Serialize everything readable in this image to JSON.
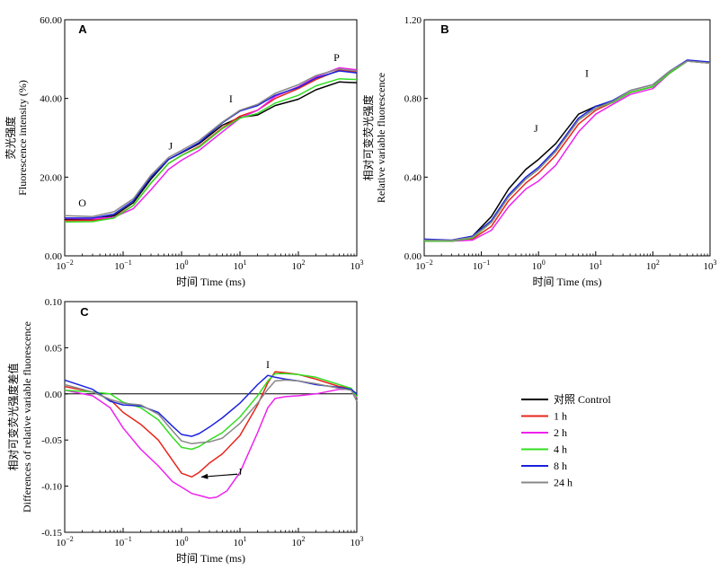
{
  "chart_data": [
    {
      "id": "A",
      "type": "line",
      "panel_label": "A",
      "xscale": "log",
      "xlim": [
        0.01,
        1000
      ],
      "ylim": [
        0,
        60
      ],
      "xlabel": "时间 Time (ms)",
      "ylabel_cn": "荧光强度",
      "ylabel_en": "Fluorescence intensity (%)",
      "yticks": [
        "0.00",
        "20.00",
        "40.00",
        "60.00"
      ],
      "ytick_values": [
        0,
        20,
        40,
        60
      ],
      "xticks": [
        {
          "base": "10",
          "exp": "−2",
          "value": 0.01
        },
        {
          "base": "10",
          "exp": "−1",
          "value": 0.1
        },
        {
          "base": "10",
          "exp": "0",
          "value": 1
        },
        {
          "base": "10",
          "exp": "1",
          "value": 10
        },
        {
          "base": "10",
          "exp": "2",
          "value": 100
        },
        {
          "base": "10",
          "exp": "3",
          "value": 1000
        }
      ],
      "annotations": [
        {
          "text": "O",
          "x": 0.02,
          "y": 12.5
        },
        {
          "text": "J",
          "x": 0.65,
          "y": 27
        },
        {
          "text": "I",
          "x": 7,
          "y": 39
        },
        {
          "text": "P",
          "x": 450,
          "y": 49.5
        }
      ],
      "series": [
        {
          "key": "ctrl",
          "x": [
            0.01,
            0.03,
            0.07,
            0.15,
            0.3,
            0.6,
            1,
            2,
            5,
            10,
            20,
            40,
            100,
            200,
            500,
            1000
          ],
          "y": [
            9.2,
            9.3,
            10.2,
            13.5,
            19.5,
            24.5,
            26.2,
            28.5,
            33.2,
            35.2,
            35.8,
            38.2,
            39.8,
            42.2,
            44.2,
            44.0
          ]
        },
        {
          "key": "h1",
          "x": [
            0.01,
            0.03,
            0.07,
            0.15,
            0.3,
            0.6,
            1,
            2,
            5,
            10,
            20,
            40,
            100,
            200,
            500,
            1000
          ],
          "y": [
            9.0,
            9.0,
            9.8,
            12.8,
            18.5,
            23.5,
            25.5,
            27.8,
            32.5,
            35.5,
            37.0,
            40.0,
            42.5,
            44.8,
            47.2,
            46.8
          ]
        },
        {
          "key": "h2",
          "x": [
            0.01,
            0.03,
            0.07,
            0.15,
            0.3,
            0.6,
            1,
            2,
            5,
            10,
            20,
            40,
            100,
            200,
            500,
            1000
          ],
          "y": [
            9.5,
            9.4,
            9.8,
            12.0,
            16.8,
            22.0,
            24.3,
            26.8,
            31.5,
            35.0,
            37.0,
            40.5,
            43.0,
            45.5,
            47.8,
            47.3
          ]
        },
        {
          "key": "h4",
          "x": [
            0.01,
            0.03,
            0.07,
            0.15,
            0.3,
            0.6,
            1,
            2,
            5,
            10,
            20,
            40,
            100,
            200,
            500,
            1000
          ],
          "y": [
            8.6,
            8.7,
            9.6,
            12.8,
            18.5,
            23.5,
            25.5,
            27.6,
            32.3,
            35.0,
            36.2,
            38.8,
            40.8,
            43.2,
            45.0,
            44.8
          ]
        },
        {
          "key": "h8",
          "x": [
            0.01,
            0.03,
            0.07,
            0.15,
            0.3,
            0.6,
            1,
            2,
            5,
            10,
            20,
            40,
            100,
            200,
            500,
            1000
          ],
          "y": [
            9.6,
            9.6,
            10.6,
            14.0,
            20.0,
            24.5,
            26.3,
            28.8,
            33.8,
            36.8,
            38.2,
            40.8,
            42.8,
            45.2,
            47.0,
            46.5
          ]
        },
        {
          "key": "h24",
          "x": [
            0.01,
            0.03,
            0.07,
            0.15,
            0.3,
            0.6,
            1,
            2,
            5,
            10,
            20,
            40,
            100,
            200,
            500,
            1000
          ],
          "y": [
            10.2,
            10.0,
            11.2,
            14.5,
            20.5,
            25.0,
            26.8,
            29.3,
            34.0,
            37.0,
            38.5,
            41.3,
            43.5,
            45.8,
            47.5,
            47.0
          ]
        }
      ]
    },
    {
      "id": "B",
      "type": "line",
      "panel_label": "B",
      "xscale": "log",
      "xlim": [
        0.01,
        1000
      ],
      "ylim": [
        0,
        1.2
      ],
      "xlabel": "时间 Time (ms)",
      "ylabel_cn": "相对可变荧光强度",
      "ylabel_en": "Relative variable fluorescence",
      "yticks": [
        "0.00",
        "0.40",
        "0.80",
        "1.20"
      ],
      "ytick_values": [
        0,
        0.4,
        0.8,
        1.2
      ],
      "xticks": [
        {
          "base": "10",
          "exp": "−2",
          "value": 0.01
        },
        {
          "base": "10",
          "exp": "−1",
          "value": 0.1
        },
        {
          "base": "10",
          "exp": "0",
          "value": 1
        },
        {
          "base": "10",
          "exp": "1",
          "value": 10
        },
        {
          "base": "10",
          "exp": "2",
          "value": 100
        },
        {
          "base": "10",
          "exp": "3",
          "value": 1000
        }
      ],
      "annotations": [
        {
          "text": "J",
          "x": 0.9,
          "y": 0.63
        },
        {
          "text": "I",
          "x": 7,
          "y": 0.91
        }
      ],
      "series": [
        {
          "key": "ctrl",
          "x": [
            0.01,
            0.03,
            0.07,
            0.15,
            0.3,
            0.6,
            1,
            2,
            5,
            10,
            20,
            40,
            100,
            200,
            400,
            1000
          ],
          "y": [
            0.075,
            0.075,
            0.1,
            0.2,
            0.34,
            0.44,
            0.49,
            0.57,
            0.72,
            0.76,
            0.78,
            0.83,
            0.86,
            0.93,
            0.99,
            0.98
          ]
        },
        {
          "key": "h1",
          "x": [
            0.01,
            0.03,
            0.07,
            0.15,
            0.3,
            0.6,
            1,
            2,
            5,
            10,
            20,
            40,
            100,
            200,
            400,
            1000
          ],
          "y": [
            0.075,
            0.075,
            0.085,
            0.15,
            0.28,
            0.37,
            0.42,
            0.51,
            0.67,
            0.74,
            0.78,
            0.83,
            0.86,
            0.93,
            0.99,
            0.98
          ]
        },
        {
          "key": "h2",
          "x": [
            0.01,
            0.03,
            0.07,
            0.15,
            0.3,
            0.6,
            1,
            2,
            5,
            10,
            20,
            40,
            100,
            200,
            400,
            1000
          ],
          "y": [
            0.075,
            0.075,
            0.08,
            0.13,
            0.25,
            0.34,
            0.38,
            0.46,
            0.63,
            0.72,
            0.77,
            0.82,
            0.85,
            0.93,
            0.99,
            0.98
          ]
        },
        {
          "key": "h4",
          "x": [
            0.01,
            0.03,
            0.07,
            0.15,
            0.3,
            0.6,
            1,
            2,
            5,
            10,
            20,
            40,
            100,
            200,
            400,
            1000
          ],
          "y": [
            0.075,
            0.075,
            0.09,
            0.17,
            0.3,
            0.39,
            0.44,
            0.53,
            0.69,
            0.75,
            0.78,
            0.83,
            0.86,
            0.93,
            0.99,
            0.98
          ]
        },
        {
          "key": "h8",
          "x": [
            0.01,
            0.03,
            0.07,
            0.15,
            0.3,
            0.6,
            1,
            2,
            5,
            10,
            20,
            40,
            100,
            200,
            400,
            1000
          ],
          "y": [
            0.085,
            0.08,
            0.1,
            0.18,
            0.31,
            0.4,
            0.45,
            0.54,
            0.7,
            0.76,
            0.79,
            0.84,
            0.87,
            0.94,
            0.995,
            0.985
          ]
        },
        {
          "key": "h24",
          "x": [
            0.01,
            0.03,
            0.07,
            0.15,
            0.3,
            0.6,
            1,
            2,
            5,
            10,
            20,
            40,
            100,
            200,
            400,
            1000
          ],
          "y": [
            0.08,
            0.078,
            0.095,
            0.17,
            0.3,
            0.39,
            0.44,
            0.53,
            0.69,
            0.75,
            0.785,
            0.84,
            0.87,
            0.94,
            0.99,
            0.98
          ]
        }
      ]
    },
    {
      "id": "C",
      "type": "line",
      "panel_label": "C",
      "xscale": "log",
      "xlim": [
        0.01,
        1000
      ],
      "ylim": [
        -0.15,
        0.1
      ],
      "zero_line": true,
      "xlabel": "时间 Time (ms)",
      "ylabel_cn": "相对可变荧光强度差值",
      "ylabel_en": "Differences of relative variable fluorescence",
      "yticks": [
        "0.10",
        "0.05",
        "0.00",
        "-0.05",
        "-0.10",
        "-0.15"
      ],
      "ytick_values": [
        0.1,
        0.05,
        0,
        -0.05,
        -0.1,
        -0.15
      ],
      "xticks": [
        {
          "base": "10",
          "exp": "−2",
          "value": 0.01
        },
        {
          "base": "10",
          "exp": "−1",
          "value": 0.1
        },
        {
          "base": "10",
          "exp": "0",
          "value": 1
        },
        {
          "base": "10",
          "exp": "1",
          "value": 10
        },
        {
          "base": "10",
          "exp": "2",
          "value": 100
        },
        {
          "base": "10",
          "exp": "3",
          "value": 1000
        }
      ],
      "annotations": [
        {
          "text": "I",
          "x": 30,
          "y": 0.028
        },
        {
          "text": "J",
          "x": 10,
          "y": -0.088
        }
      ],
      "arrow": {
        "from": [
          9,
          -0.087
        ],
        "to": [
          2.2,
          -0.09
        ]
      },
      "series": [
        {
          "key": "h1",
          "x": [
            0.01,
            0.03,
            0.06,
            0.1,
            0.2,
            0.4,
            0.7,
            1,
            1.5,
            2,
            3,
            5,
            10,
            20,
            30,
            40,
            60,
            100,
            200,
            500,
            800,
            1000
          ],
          "y": [
            0.008,
            0.002,
            -0.006,
            -0.02,
            -0.033,
            -0.05,
            -0.072,
            -0.086,
            -0.09,
            -0.085,
            -0.075,
            -0.065,
            -0.045,
            -0.012,
            0.012,
            0.024,
            0.023,
            0.021,
            0.016,
            0.008,
            0.006,
            -0.004
          ]
        },
        {
          "key": "h2",
          "x": [
            0.01,
            0.03,
            0.06,
            0.1,
            0.2,
            0.4,
            0.7,
            1,
            1.5,
            2,
            3,
            4,
            6,
            10,
            20,
            30,
            40,
            60,
            100,
            200,
            500,
            800,
            1000
          ],
          "y": [
            0.004,
            -0.002,
            -0.015,
            -0.037,
            -0.06,
            -0.078,
            -0.095,
            -0.101,
            -0.108,
            -0.11,
            -0.113,
            -0.112,
            -0.105,
            -0.085,
            -0.042,
            -0.015,
            -0.005,
            -0.003,
            -0.002,
            0.0,
            0.005,
            0.005,
            -0.004
          ]
        },
        {
          "key": "h4",
          "x": [
            0.01,
            0.03,
            0.06,
            0.1,
            0.2,
            0.4,
            0.7,
            1,
            1.5,
            2,
            3,
            5,
            10,
            20,
            30,
            40,
            60,
            100,
            200,
            500,
            800,
            1000
          ],
          "y": [
            0.004,
            0.002,
            0.0,
            -0.009,
            -0.015,
            -0.028,
            -0.047,
            -0.058,
            -0.06,
            -0.057,
            -0.05,
            -0.042,
            -0.025,
            -0.002,
            0.014,
            0.022,
            0.022,
            0.021,
            0.018,
            0.01,
            0.006,
            -0.003
          ]
        },
        {
          "key": "h8",
          "x": [
            0.01,
            0.03,
            0.06,
            0.1,
            0.2,
            0.4,
            0.7,
            1,
            1.5,
            2,
            3,
            5,
            10,
            20,
            30,
            40,
            60,
            100,
            200,
            500,
            800,
            1000
          ],
          "y": [
            0.015,
            0.005,
            -0.008,
            -0.012,
            -0.013,
            -0.02,
            -0.035,
            -0.044,
            -0.046,
            -0.043,
            -0.036,
            -0.026,
            -0.01,
            0.01,
            0.02,
            0.018,
            0.016,
            0.014,
            0.01,
            0.007,
            0.005,
            0.0
          ]
        },
        {
          "key": "h24",
          "x": [
            0.01,
            0.03,
            0.06,
            0.1,
            0.2,
            0.4,
            0.7,
            1,
            1.5,
            2,
            3,
            5,
            10,
            20,
            30,
            40,
            60,
            100,
            200,
            500,
            800,
            1000
          ],
          "y": [
            0.01,
            0.002,
            -0.006,
            -0.01,
            -0.012,
            -0.022,
            -0.04,
            -0.051,
            -0.054,
            -0.053,
            -0.052,
            -0.048,
            -0.032,
            -0.01,
            0.005,
            0.014,
            0.015,
            0.014,
            0.011,
            0.006,
            0.004,
            -0.008
          ]
        }
      ]
    }
  ],
  "legend": {
    "placement": "right of panel C",
    "items": [
      {
        "key": "ctrl",
        "label": "对照 Control",
        "color": "#000000"
      },
      {
        "key": "h1",
        "label": "1 h",
        "color": "#e8251b"
      },
      {
        "key": "h2",
        "label": "2 h",
        "color": "#ee22ee"
      },
      {
        "key": "h4",
        "label": "4 h",
        "color": "#33dd22"
      },
      {
        "key": "h8",
        "label": "8 h",
        "color": "#1a22dd"
      },
      {
        "key": "h24",
        "label": "24 h",
        "color": "#888888"
      }
    ]
  }
}
